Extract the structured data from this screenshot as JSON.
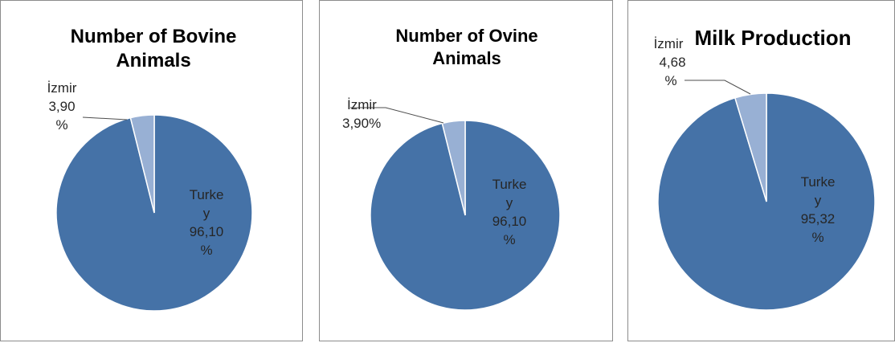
{
  "colors": {
    "turkey": "#4572a7",
    "izmir": "#98b0d4",
    "leader": "#4d4d4d",
    "border": "#8c8c8c"
  },
  "chart_data": [
    {
      "type": "pie",
      "title_line1": "Number of Bovine",
      "title_line2": "Animals",
      "slices": [
        {
          "name": "İzmir",
          "value": 3.9,
          "label_value": "3,90",
          "label_pct": "%"
        },
        {
          "name_1": "Turke",
          "name_2": "y",
          "name": "Turkey",
          "value": 96.1,
          "label_value": "96,10",
          "label_pct": "%"
        }
      ]
    },
    {
      "type": "pie",
      "title_line1": "Number of Ovine",
      "title_line2": "Animals",
      "slices": [
        {
          "name": "İzmir",
          "value": 3.9,
          "label_value": "3,90%"
        },
        {
          "name_1": "Turke",
          "name_2": "y",
          "name": "Turkey",
          "value": 96.1,
          "label_value": "96,10",
          "label_pct": "%"
        }
      ]
    },
    {
      "type": "pie",
      "title_line1": "Milk Production",
      "slices": [
        {
          "name": "İzmir",
          "value": 4.68,
          "label_value": "4,68",
          "label_pct": "%"
        },
        {
          "name_1": "Turke",
          "name_2": "y",
          "name": "Turkey",
          "value": 95.32,
          "label_value": "95,32",
          "label_pct": "%"
        }
      ]
    }
  ]
}
